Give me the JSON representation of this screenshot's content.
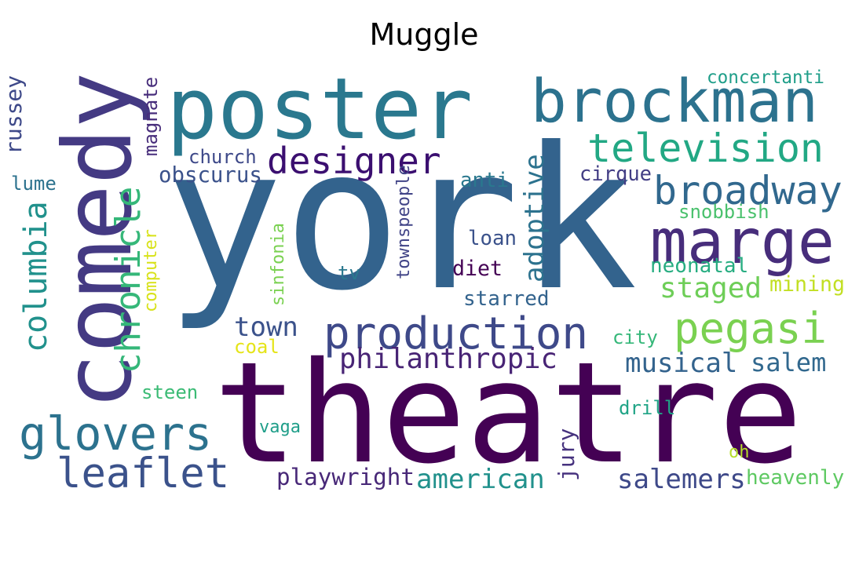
{
  "title": "Muggle",
  "words": [
    {
      "text": "york",
      "color": "#33638d"
    },
    {
      "text": "theatre",
      "color": "#440154"
    },
    {
      "text": "poster",
      "color": "#2a788e"
    },
    {
      "text": "comedy",
      "color": "#443a83"
    },
    {
      "text": "brockman",
      "color": "#2c728e"
    },
    {
      "text": "marge",
      "color": "#472d7b"
    },
    {
      "text": "production",
      "color": "#3e4989"
    },
    {
      "text": "television",
      "color": "#22a884"
    },
    {
      "text": "designer",
      "color": "#3b0f70"
    },
    {
      "text": "broadway",
      "color": "#31688e"
    },
    {
      "text": "pegasi",
      "color": "#7ad151"
    },
    {
      "text": "glovers",
      "color": "#2c728e"
    },
    {
      "text": "leaflet",
      "color": "#3b528b"
    },
    {
      "text": "chronicle",
      "color": "#35b779"
    },
    {
      "text": "columbia",
      "color": "#21918c"
    },
    {
      "text": "philanthropic",
      "color": "#482475"
    },
    {
      "text": "musical",
      "color": "#33638d"
    },
    {
      "text": "american",
      "color": "#21918c"
    },
    {
      "text": "salemers",
      "color": "#3e4989"
    },
    {
      "text": "playwright",
      "color": "#482878"
    },
    {
      "text": "staged",
      "color": "#6ece58"
    },
    {
      "text": "salem",
      "color": "#31688e"
    },
    {
      "text": "town",
      "color": "#3b528b"
    },
    {
      "text": "adoptive",
      "color": "#2c728e"
    },
    {
      "text": "russey",
      "color": "#3e4989"
    },
    {
      "text": "townspeople",
      "color": "#414487"
    },
    {
      "text": "jury",
      "color": "#46327e"
    },
    {
      "text": "obscurus",
      "color": "#3b528b"
    },
    {
      "text": "concertanti",
      "color": "#1f9e89"
    },
    {
      "text": "church",
      "color": "#3e4989"
    },
    {
      "text": "magnate",
      "color": "#472d7b"
    },
    {
      "text": "snobbish",
      "color": "#4ac16d"
    },
    {
      "text": "cirque",
      "color": "#433e85"
    },
    {
      "text": "anti",
      "color": "#2a788e"
    },
    {
      "text": "loan",
      "color": "#3b528b"
    },
    {
      "text": "diet",
      "color": "#440154"
    },
    {
      "text": "neonatal",
      "color": "#27ad81"
    },
    {
      "text": "mining",
      "color": "#c2df23"
    },
    {
      "text": "starred",
      "color": "#33638d"
    },
    {
      "text": "tv",
      "color": "#2a788e"
    },
    {
      "text": "sinfonia",
      "color": "#7ad151"
    },
    {
      "text": "computer",
      "color": "#d8e219"
    },
    {
      "text": "lume",
      "color": "#2c728e"
    },
    {
      "text": "city",
      "color": "#35b779"
    },
    {
      "text": "coal",
      "color": "#e5e419"
    },
    {
      "text": "steen",
      "color": "#3bbb75"
    },
    {
      "text": "drill",
      "color": "#20a486"
    },
    {
      "text": "vaga",
      "color": "#1f9e89"
    },
    {
      "text": "oh",
      "color": "#b5de2b"
    },
    {
      "text": "heavenly",
      "color": "#5ec962"
    }
  ]
}
